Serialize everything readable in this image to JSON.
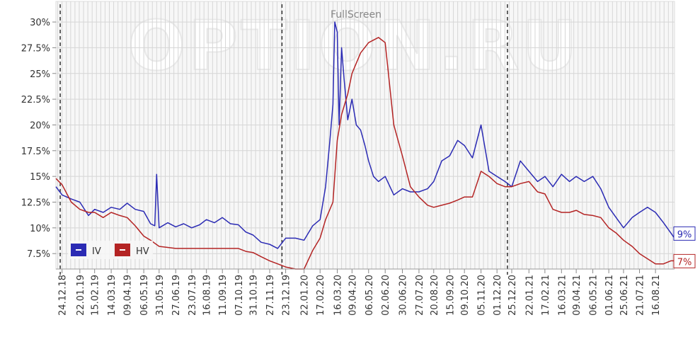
{
  "watermark": "OPTION.RU",
  "fullscreen_label": "FullScreen",
  "colors": {
    "iv": "#2b2bb4",
    "hv": "#b42424",
    "grid": "#d6d6d6",
    "panel": "#f7f7f7",
    "vline": "#333333",
    "axis_text": "#333333"
  },
  "chart_data": {
    "type": "line",
    "title": "",
    "xlabel": "",
    "ylabel": "",
    "y_unit": "%",
    "ylim": [
      6.0,
      32.0
    ],
    "y_ticks": [
      7.5,
      10,
      12.5,
      15,
      17.5,
      20,
      22.5,
      25,
      27.5,
      30
    ],
    "y_tick_labels": [
      "7.5%",
      "10%",
      "12.5%",
      "15%",
      "17.5%",
      "20%",
      "22.5%",
      "25%",
      "27.5%",
      "30%"
    ],
    "xlim": [
      "2018-12-14",
      "2021-09-16"
    ],
    "x_ticks": [
      "2018-12-24",
      "2019-01-22",
      "2019-02-15",
      "2019-03-14",
      "2019-04-09",
      "2019-05-06",
      "2019-05-31",
      "2019-06-27",
      "2019-07-23",
      "2019-08-16",
      "2019-09-11",
      "2019-10-07",
      "2019-10-31",
      "2019-11-27",
      "2019-12-23",
      "2020-01-22",
      "2020-02-17",
      "2020-03-16",
      "2020-04-09",
      "2020-05-06",
      "2020-06-02",
      "2020-06-30",
      "2020-07-27",
      "2020-08-20",
      "2020-09-15",
      "2020-10-09",
      "2020-11-05",
      "2020-12-01",
      "2020-12-25",
      "2021-01-22",
      "2021-02-17",
      "2021-03-16",
      "2021-04-09",
      "2021-05-06",
      "2021-06-01",
      "2021-06-25",
      "2021-07-21",
      "2021-08-16"
    ],
    "x_tick_labels": [
      "24.12.18",
      "22.01.19",
      "15.02.19",
      "14.03.19",
      "09.04.19",
      "06.05.19",
      "31.05.19",
      "27.06.19",
      "23.07.19",
      "16.08.19",
      "11.09.19",
      "07.10.19",
      "31.10.19",
      "27.11.19",
      "23.12.19",
      "22.01.20",
      "17.02.20",
      "16.03.20",
      "09.04.20",
      "06.05.20",
      "02.06.20",
      "30.06.20",
      "27.07.20",
      "20.08.20",
      "15.09.20",
      "09.10.20",
      "05.11.20",
      "01.12.20",
      "25.12.20",
      "22.01.21",
      "17.02.21",
      "16.03.21",
      "09.04.21",
      "06.05.21",
      "01.06.21",
      "25.06.21",
      "21.07.21",
      "16.08.21"
    ],
    "vertical_markers": [
      "2018-12-21",
      "2019-12-17",
      "2020-12-18"
    ],
    "grid": true,
    "legend": "bottom-left",
    "series": [
      {
        "name": "IV",
        "end_label": "9%",
        "x": [
          "2018-12-14",
          "2018-12-24",
          "2019-01-08",
          "2019-01-22",
          "2019-02-05",
          "2019-02-15",
          "2019-03-01",
          "2019-03-14",
          "2019-03-28",
          "2019-04-09",
          "2019-04-22",
          "2019-05-06",
          "2019-05-17",
          "2019-05-24",
          "2019-05-27",
          "2019-05-31",
          "2019-06-14",
          "2019-06-27",
          "2019-07-10",
          "2019-07-23",
          "2019-08-05",
          "2019-08-16",
          "2019-08-29",
          "2019-09-11",
          "2019-09-24",
          "2019-10-07",
          "2019-10-19",
          "2019-10-31",
          "2019-11-13",
          "2019-11-27",
          "2019-12-10",
          "2019-12-23",
          "2020-01-08",
          "2020-01-22",
          "2020-02-05",
          "2020-02-17",
          "2020-02-26",
          "2020-03-04",
          "2020-03-09",
          "2020-03-12",
          "2020-03-16",
          "2020-03-19",
          "2020-03-23",
          "2020-03-27",
          "2020-04-02",
          "2020-04-09",
          "2020-04-16",
          "2020-04-23",
          "2020-04-30",
          "2020-05-06",
          "2020-05-14",
          "2020-05-22",
          "2020-06-02",
          "2020-06-16",
          "2020-06-30",
          "2020-07-13",
          "2020-07-27",
          "2020-08-10",
          "2020-08-20",
          "2020-09-02",
          "2020-09-15",
          "2020-09-28",
          "2020-10-09",
          "2020-10-22",
          "2020-11-05",
          "2020-11-18",
          "2020-12-01",
          "2020-12-14",
          "2020-12-25",
          "2021-01-08",
          "2021-01-22",
          "2021-02-05",
          "2021-02-17",
          "2021-03-02",
          "2021-03-16",
          "2021-03-29",
          "2021-04-09",
          "2021-04-22",
          "2021-05-06",
          "2021-05-19",
          "2021-06-01",
          "2021-06-13",
          "2021-06-25",
          "2021-07-09",
          "2021-07-21",
          "2021-08-03",
          "2021-08-16",
          "2021-08-29",
          "2021-09-10",
          "2021-09-16"
        ],
        "values": [
          14.0,
          13.2,
          12.8,
          12.5,
          11.2,
          11.8,
          11.5,
          12.0,
          11.8,
          12.4,
          11.8,
          11.6,
          10.4,
          10.2,
          15.2,
          10.0,
          10.5,
          10.1,
          10.4,
          10.0,
          10.3,
          10.8,
          10.5,
          11.0,
          10.4,
          10.3,
          9.6,
          9.3,
          8.6,
          8.4,
          8.0,
          9.0,
          9.0,
          8.8,
          10.2,
          10.8,
          14.0,
          18.5,
          22.0,
          30.0,
          29.0,
          20.0,
          27.5,
          24.5,
          20.5,
          22.5,
          20.0,
          19.5,
          18.0,
          16.5,
          15.0,
          14.5,
          15.0,
          13.2,
          13.8,
          13.5,
          13.5,
          13.8,
          14.5,
          16.5,
          17.0,
          18.5,
          18.0,
          16.8,
          20.0,
          15.5,
          15.0,
          14.5,
          14.0,
          16.5,
          15.5,
          14.5,
          15.0,
          14.0,
          15.2,
          14.5,
          15.0,
          14.5,
          15.0,
          13.8,
          12.0,
          11.0,
          10.0,
          11.0,
          11.5,
          12.0,
          11.5,
          10.5,
          9.5,
          9.0
        ]
      },
      {
        "name": "HV",
        "end_label": "7%",
        "x": [
          "2018-12-14",
          "2018-12-24",
          "2019-01-08",
          "2019-01-22",
          "2019-02-05",
          "2019-02-15",
          "2019-03-01",
          "2019-03-14",
          "2019-03-28",
          "2019-04-09",
          "2019-04-22",
          "2019-05-06",
          "2019-05-17",
          "2019-05-31",
          "2019-06-27",
          "2019-07-23",
          "2019-08-16",
          "2019-09-11",
          "2019-10-07",
          "2019-10-20",
          "2019-10-31",
          "2019-11-13",
          "2019-11-27",
          "2019-12-10",
          "2019-12-23",
          "2020-01-08",
          "2020-01-22",
          "2020-02-05",
          "2020-02-17",
          "2020-02-26",
          "2020-03-09",
          "2020-03-16",
          "2020-03-23",
          "2020-04-02",
          "2020-04-09",
          "2020-04-16",
          "2020-04-23",
          "2020-05-06",
          "2020-05-22",
          "2020-06-02",
          "2020-06-16",
          "2020-06-30",
          "2020-07-13",
          "2020-07-27",
          "2020-08-10",
          "2020-08-20",
          "2020-09-02",
          "2020-09-15",
          "2020-09-28",
          "2020-10-09",
          "2020-10-22",
          "2020-11-05",
          "2020-11-18",
          "2020-12-01",
          "2020-12-14",
          "2020-12-25",
          "2021-01-08",
          "2021-01-22",
          "2021-02-05",
          "2021-02-17",
          "2021-03-02",
          "2021-03-16",
          "2021-03-29",
          "2021-04-09",
          "2021-04-22",
          "2021-05-06",
          "2021-05-19",
          "2021-06-01",
          "2021-06-13",
          "2021-06-25",
          "2021-07-09",
          "2021-07-21",
          "2021-08-03",
          "2021-08-16",
          "2021-08-29",
          "2021-09-10",
          "2021-09-16"
        ],
        "values": [
          14.8,
          14.2,
          12.5,
          11.8,
          11.5,
          11.5,
          11.0,
          11.5,
          11.2,
          11.0,
          10.2,
          9.2,
          8.8,
          8.2,
          8.0,
          8.0,
          8.0,
          8.0,
          8.0,
          7.7,
          7.6,
          7.2,
          6.8,
          6.5,
          6.2,
          6.0,
          6.0,
          7.8,
          9.0,
          10.8,
          12.5,
          18.5,
          21.0,
          23.0,
          25.0,
          26.0,
          27.0,
          28.0,
          28.5,
          28.0,
          20.0,
          17.0,
          14.0,
          13.0,
          12.2,
          12.0,
          12.2,
          12.4,
          12.7,
          13.0,
          13.0,
          15.5,
          15.0,
          14.3,
          14.0,
          14.0,
          14.3,
          14.5,
          13.5,
          13.3,
          11.8,
          11.5,
          11.5,
          11.7,
          11.3,
          11.2,
          11.0,
          10.0,
          9.5,
          8.8,
          8.2,
          7.5,
          7.0,
          6.5,
          6.5,
          6.8,
          6.8
        ]
      }
    ]
  }
}
